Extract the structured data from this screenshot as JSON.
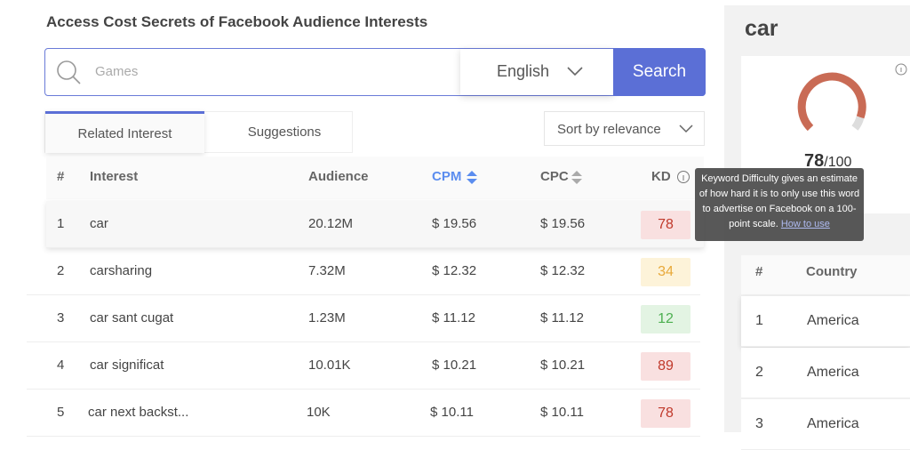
{
  "header": {
    "title": "Access Cost Secrets of Facebook Audience Interests"
  },
  "search": {
    "placeholder": "Games",
    "language": "English",
    "button": "Search"
  },
  "tabs": [
    "Related Interest",
    "Suggestions"
  ],
  "sort": "Sort by relevance",
  "table": {
    "headers": [
      "#",
      "Interest",
      "Audience",
      "CPM",
      "CPC",
      "KD"
    ],
    "rows": [
      [
        "1",
        "car",
        "20.12M",
        "$ 19.56",
        "$ 19.56",
        78
      ],
      [
        "2",
        "carsharing",
        "7.32M",
        "$ 12.32",
        "$ 12.32",
        34
      ],
      [
        "3",
        "car sant cugat",
        "1.23M",
        "$ 11.12",
        "$ 11.12",
        12
      ],
      [
        "4",
        "car significat",
        "10.01K",
        "$ 10.21",
        "$ 10.21",
        89
      ],
      [
        "5",
        "car next backst...",
        "10K",
        "$ 10.11",
        "$ 10.11",
        78
      ]
    ]
  },
  "tooltip": {
    "text": "Keyword Difficulty gives an estimate of how hard it is to only use this word to advertise on Facebook on a 100-point scale.",
    "link": "How to use"
  },
  "detail": {
    "keyword": "car",
    "score": "78",
    "scale": "/100",
    "country_table": {
      "headers": [
        "#",
        "Country"
      ],
      "rows": [
        [
          "1",
          "America"
        ],
        [
          "2",
          "America"
        ],
        [
          "3",
          "America"
        ]
      ]
    }
  }
}
